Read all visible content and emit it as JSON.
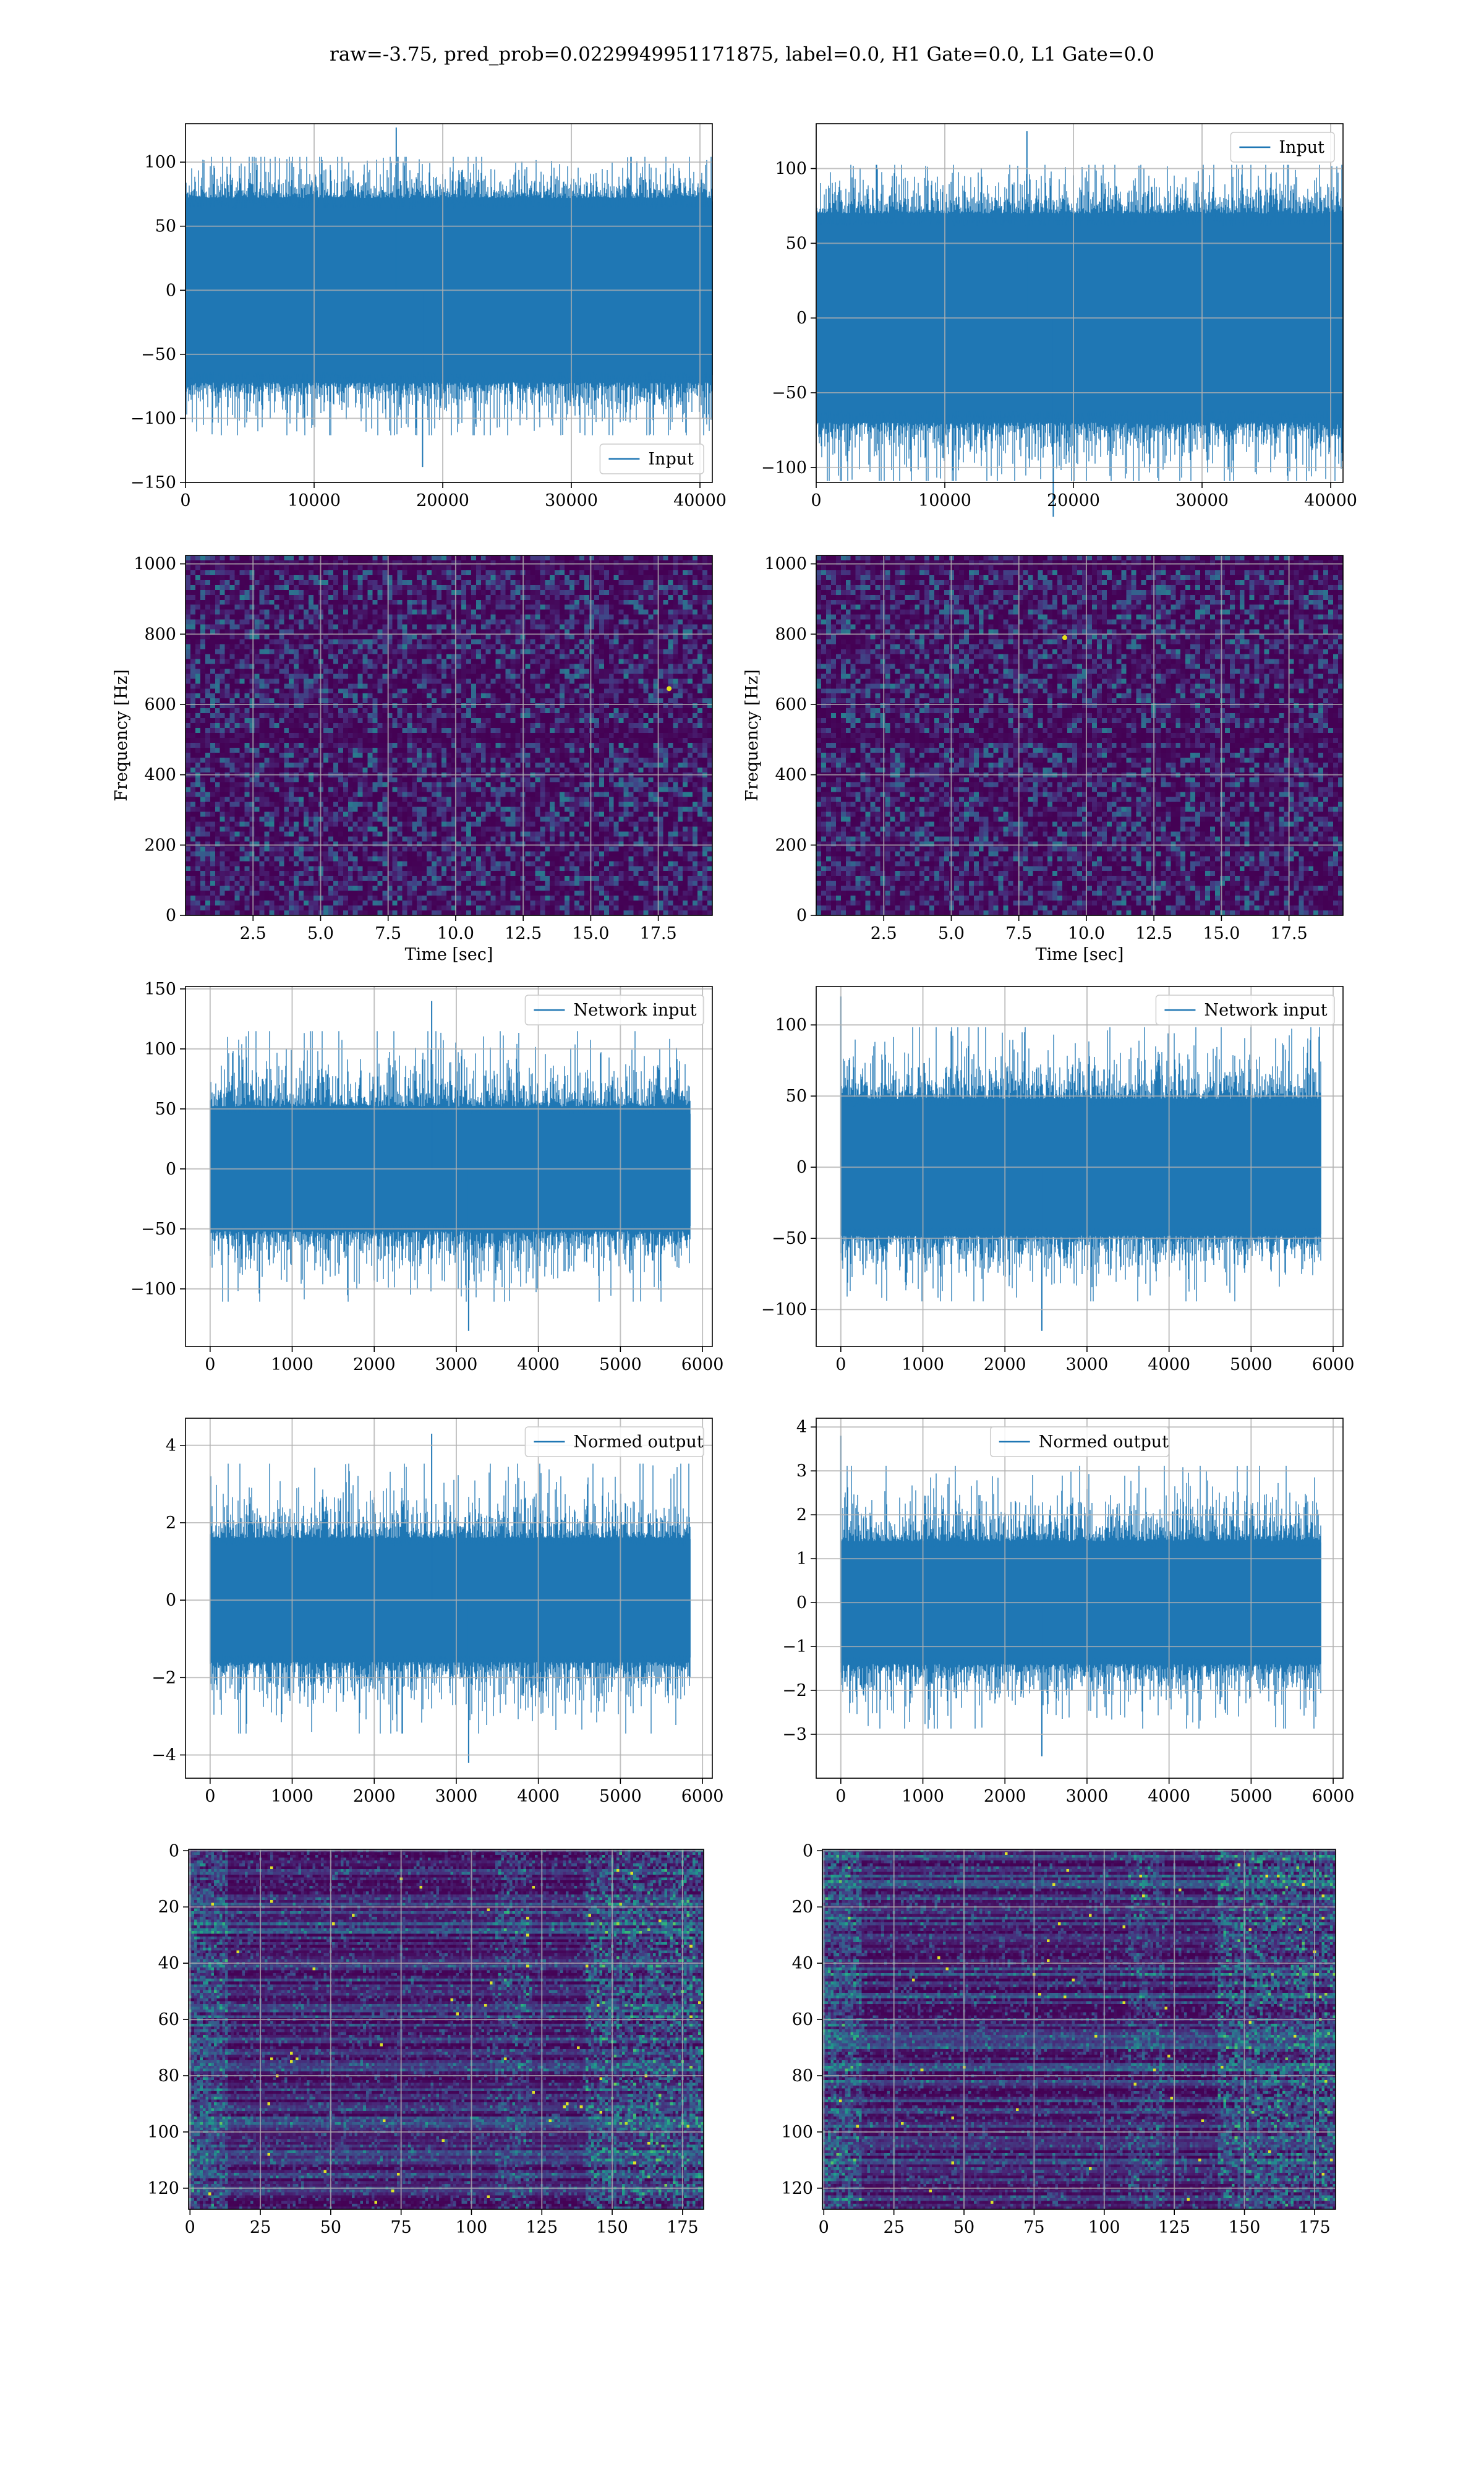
{
  "figure": {
    "title": "raw=-3.75, pred_prob=0.0229949951171875, label=0.0, H1 Gate=0.0, L1 Gate=0.0",
    "colors": {
      "line": "#1f77b4",
      "grid": "#b0b0b0",
      "axis": "#000000",
      "legend_border": "#cccccc"
    },
    "colormap": "viridis"
  },
  "chart_data": [
    {
      "id": "h1-input",
      "type": "line",
      "xlim": [
        0,
        40960
      ],
      "ylim": [
        -150,
        130
      ],
      "x_ticks": [
        0,
        10000,
        20000,
        30000,
        40000
      ],
      "y_ticks": [
        -150,
        -100,
        -50,
        0,
        50,
        100
      ],
      "x_tick_labels": [
        "0",
        "10000",
        "20000",
        "30000",
        "40000"
      ],
      "y_tick_labels": [
        "−150",
        "−100",
        "−50",
        "0",
        "50",
        "100"
      ],
      "series": [
        {
          "name": "Input",
          "n_points": 40960,
          "envelope": [
            -72,
            72
          ],
          "peak_max": 127,
          "peak_min": -138
        }
      ],
      "legend": "lower right",
      "grid": true,
      "xlabel": "",
      "ylabel": ""
    },
    {
      "id": "l1-input",
      "type": "line",
      "xlim": [
        0,
        40960
      ],
      "ylim": [
        -110,
        130
      ],
      "x_ticks": [
        0,
        10000,
        20000,
        30000,
        40000
      ],
      "y_ticks": [
        -100,
        -50,
        0,
        50,
        100
      ],
      "x_tick_labels": [
        "0",
        "10000",
        "20000",
        "30000",
        "40000"
      ],
      "y_tick_labels": [
        "−100",
        "−50",
        "0",
        "50",
        "100"
      ],
      "series": [
        {
          "name": "Input",
          "n_points": 40960,
          "envelope": [
            -70,
            70
          ],
          "peak_max": 125,
          "peak_min": -133
        }
      ],
      "legend": "upper right",
      "grid": true,
      "xlabel": "",
      "ylabel": ""
    },
    {
      "id": "h1-spectrogram",
      "type": "heatmap",
      "xlim": [
        0,
        19.5
      ],
      "ylim": [
        0,
        1024
      ],
      "x_ticks": [
        2.5,
        5.0,
        7.5,
        10.0,
        12.5,
        15.0,
        17.5
      ],
      "y_ticks": [
        0,
        200,
        400,
        600,
        800,
        1000
      ],
      "x_tick_labels": [
        "2.5",
        "5.0",
        "7.5",
        "10.0",
        "12.5",
        "15.0",
        "17.5"
      ],
      "y_tick_labels": [
        "0",
        "200",
        "400",
        "600",
        "800",
        "1000"
      ],
      "xlabel": "Time [sec]",
      "ylabel": "Frequency [Hz]",
      "grid": true,
      "hot_spots": [
        {
          "t": 17.9,
          "f": 645
        }
      ],
      "dark_bands_hz": [
        500,
        1000
      ]
    },
    {
      "id": "l1-spectrogram",
      "type": "heatmap",
      "xlim": [
        0,
        19.5
      ],
      "ylim": [
        0,
        1024
      ],
      "x_ticks": [
        2.5,
        5.0,
        7.5,
        10.0,
        12.5,
        15.0,
        17.5
      ],
      "y_ticks": [
        0,
        200,
        400,
        600,
        800,
        1000
      ],
      "x_tick_labels": [
        "2.5",
        "5.0",
        "7.5",
        "10.0",
        "12.5",
        "15.0",
        "17.5"
      ],
      "y_tick_labels": [
        "0",
        "200",
        "400",
        "600",
        "800",
        "1000"
      ],
      "xlabel": "Time [sec]",
      "ylabel": "Frequency [Hz]",
      "grid": true,
      "hot_spots": [
        {
          "t": 9.2,
          "f": 790
        }
      ],
      "dark_bands_hz": [
        500,
        1000
      ]
    },
    {
      "id": "h1-network-input",
      "type": "line",
      "xlim": [
        -300,
        6120
      ],
      "ylim": [
        -148,
        152
      ],
      "x_ticks": [
        0,
        1000,
        2000,
        3000,
        4000,
        5000,
        6000
      ],
      "y_ticks": [
        -100,
        -50,
        0,
        50,
        100,
        150
      ],
      "x_tick_labels": [
        "0",
        "1000",
        "2000",
        "3000",
        "4000",
        "5000",
        "6000"
      ],
      "y_tick_labels": [
        "−100",
        "−50",
        "0",
        "50",
        "100",
        "150"
      ],
      "series": [
        {
          "name": "Network input",
          "n_points": 5850,
          "envelope": [
            -52,
            52
          ],
          "peak_max": 140,
          "peak_min": -135,
          "peak_max_at": 2700,
          "peak_min_at": 3150
        }
      ],
      "legend": "upper right",
      "grid": true,
      "xlabel": "",
      "ylabel": ""
    },
    {
      "id": "l1-network-input",
      "type": "line",
      "xlim": [
        -300,
        6120
      ],
      "ylim": [
        -126,
        127
      ],
      "x_ticks": [
        0,
        1000,
        2000,
        3000,
        4000,
        5000,
        6000
      ],
      "y_ticks": [
        -100,
        -50,
        0,
        50,
        100
      ],
      "x_tick_labels": [
        "0",
        "1000",
        "2000",
        "3000",
        "4000",
        "5000",
        "6000"
      ],
      "y_tick_labels": [
        "−100",
        "−50",
        "0",
        "50",
        "100"
      ],
      "series": [
        {
          "name": "Network input",
          "n_points": 5850,
          "envelope": [
            -48,
            48
          ],
          "peak_max": 120,
          "peak_min": -115,
          "peak_max_at": 0,
          "peak_min_at": 2450
        }
      ],
      "legend": "upper right",
      "grid": true,
      "xlabel": "",
      "ylabel": ""
    },
    {
      "id": "h1-normed-output",
      "type": "line",
      "xlim": [
        -300,
        6120
      ],
      "ylim": [
        -4.6,
        4.7
      ],
      "x_ticks": [
        0,
        1000,
        2000,
        3000,
        4000,
        5000,
        6000
      ],
      "y_ticks": [
        -4,
        -2,
        0,
        2,
        4
      ],
      "x_tick_labels": [
        "0",
        "1000",
        "2000",
        "3000",
        "4000",
        "5000",
        "6000"
      ],
      "y_tick_labels": [
        "−4",
        "−2",
        "0",
        "2",
        "4"
      ],
      "series": [
        {
          "name": "Normed output",
          "n_points": 5850,
          "envelope": [
            -1.6,
            1.6
          ],
          "peak_max": 4.3,
          "peak_min": -4.2,
          "peak_max_at": 2700,
          "peak_min_at": 3150
        }
      ],
      "legend": "upper right",
      "grid": true,
      "xlabel": "",
      "ylabel": ""
    },
    {
      "id": "l1-normed-output",
      "type": "line",
      "xlim": [
        -300,
        6120
      ],
      "ylim": [
        -4.0,
        4.2
      ],
      "x_ticks": [
        0,
        1000,
        2000,
        3000,
        4000,
        5000,
        6000
      ],
      "y_ticks": [
        -3,
        -2,
        -1,
        0,
        1,
        2,
        3,
        4
      ],
      "x_tick_labels": [
        "0",
        "1000",
        "2000",
        "3000",
        "4000",
        "5000",
        "6000"
      ],
      "y_tick_labels": [
        "−3",
        "−2",
        "−1",
        "0",
        "1",
        "2",
        "3",
        "4"
      ],
      "series": [
        {
          "name": "Normed output",
          "n_points": 5850,
          "envelope": [
            -1.4,
            1.4
          ],
          "peak_max": 3.8,
          "peak_min": -3.5,
          "peak_max_at": 0,
          "peak_min_at": 2450
        }
      ],
      "legend": "upper center",
      "grid": true,
      "xlabel": "",
      "ylabel": ""
    },
    {
      "id": "h1-features",
      "type": "heatmap",
      "xlim": [
        -0.5,
        182.5
      ],
      "ylim": [
        127.5,
        -0.5
      ],
      "x_ticks": [
        0,
        25,
        50,
        75,
        100,
        125,
        150,
        175
      ],
      "y_ticks": [
        0,
        20,
        40,
        60,
        80,
        100,
        120
      ],
      "x_tick_labels": [
        "0",
        "25",
        "50",
        "75",
        "100",
        "125",
        "150",
        "175"
      ],
      "y_tick_labels": [
        "0",
        "20",
        "40",
        "60",
        "80",
        "100",
        "120"
      ],
      "shape": [
        128,
        183
      ],
      "grid": true,
      "xlabel": "",
      "ylabel": ""
    },
    {
      "id": "l1-features",
      "type": "heatmap",
      "xlim": [
        -0.5,
        182.5
      ],
      "ylim": [
        127.5,
        -0.5
      ],
      "x_ticks": [
        0,
        25,
        50,
        75,
        100,
        125,
        150,
        175
      ],
      "y_ticks": [
        0,
        20,
        40,
        60,
        80,
        100,
        120
      ],
      "x_tick_labels": [
        "0",
        "25",
        "50",
        "75",
        "100",
        "125",
        "150",
        "175"
      ],
      "y_tick_labels": [
        "0",
        "20",
        "40",
        "60",
        "80",
        "100",
        "120"
      ],
      "shape": [
        128,
        183
      ],
      "grid": true,
      "xlabel": "",
      "ylabel": ""
    }
  ]
}
